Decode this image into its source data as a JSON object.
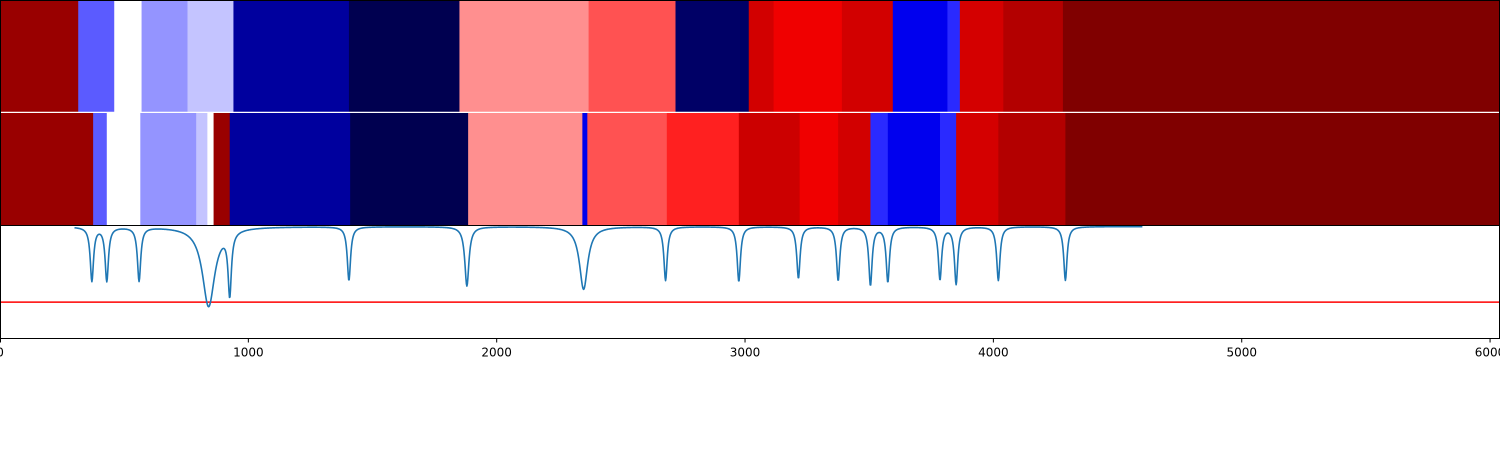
{
  "chart_data": {
    "type": "heatmap",
    "title": "",
    "xlabel": "",
    "ylabel": "",
    "xlim": [
      0,
      6040
    ],
    "x_ticks": [
      0,
      1000,
      2000,
      3000,
      4000,
      5000,
      6000
    ],
    "x_tick_labels": [
      "0",
      "1000",
      "2000",
      "3000",
      "4000",
      "5000",
      "6000"
    ],
    "grid": false,
    "legend": "none",
    "bands": [
      {
        "row": 1,
        "segments": [
          {
            "x0": 0,
            "x1": 315,
            "color": "#990000"
          },
          {
            "x0": 315,
            "x1": 460,
            "color": "#5b5bff"
          },
          {
            "x0": 460,
            "x1": 570,
            "color": "#ffffff"
          },
          {
            "x0": 570,
            "x1": 755,
            "color": "#9494ff"
          },
          {
            "x0": 755,
            "x1": 940,
            "color": "#c4c4ff"
          },
          {
            "x0": 940,
            "x1": 1405,
            "color": "#00009e"
          },
          {
            "x0": 1405,
            "x1": 1850,
            "color": "#000050"
          },
          {
            "x0": 1850,
            "x1": 2370,
            "color": "#ff8f8f"
          },
          {
            "x0": 2370,
            "x1": 2720,
            "color": "#ff5252"
          },
          {
            "x0": 2720,
            "x1": 3015,
            "color": "#000066"
          },
          {
            "x0": 3015,
            "x1": 3115,
            "color": "#d20000"
          },
          {
            "x0": 3115,
            "x1": 3390,
            "color": "#f00000"
          },
          {
            "x0": 3390,
            "x1": 3595,
            "color": "#d20000"
          },
          {
            "x0": 3595,
            "x1": 3815,
            "color": "#0000ee"
          },
          {
            "x0": 3815,
            "x1": 3865,
            "color": "#2a2aff"
          },
          {
            "x0": 3865,
            "x1": 4040,
            "color": "#d40000"
          },
          {
            "x0": 4040,
            "x1": 4280,
            "color": "#b30000"
          },
          {
            "x0": 4280,
            "x1": 6040,
            "color": "#800000"
          }
        ]
      },
      {
        "row": 2,
        "segments": [
          {
            "x0": 0,
            "x1": 375,
            "color": "#990000"
          },
          {
            "x0": 375,
            "x1": 430,
            "color": "#5b5bff"
          },
          {
            "x0": 430,
            "x1": 565,
            "color": "#ffffff"
          },
          {
            "x0": 565,
            "x1": 790,
            "color": "#9494ff"
          },
          {
            "x0": 790,
            "x1": 835,
            "color": "#c4c4ff"
          },
          {
            "x0": 835,
            "x1": 860,
            "color": "#ffffff"
          },
          {
            "x0": 860,
            "x1": 925,
            "color": "#990000"
          },
          {
            "x0": 925,
            "x1": 1410,
            "color": "#00009e"
          },
          {
            "x0": 1410,
            "x1": 1885,
            "color": "#000050"
          },
          {
            "x0": 1885,
            "x1": 2345,
            "color": "#ff8f8f"
          },
          {
            "x0": 2345,
            "x1": 2365,
            "color": "#0000ee"
          },
          {
            "x0": 2365,
            "x1": 2685,
            "color": "#ff5252"
          },
          {
            "x0": 2685,
            "x1": 2975,
            "color": "#ff2020"
          },
          {
            "x0": 2975,
            "x1": 3220,
            "color": "#cc0000"
          },
          {
            "x0": 3220,
            "x1": 3375,
            "color": "#f00000"
          },
          {
            "x0": 3375,
            "x1": 3505,
            "color": "#d20000"
          },
          {
            "x0": 3505,
            "x1": 3575,
            "color": "#2a2aff"
          },
          {
            "x0": 3575,
            "x1": 3785,
            "color": "#0000ee"
          },
          {
            "x0": 3785,
            "x1": 3850,
            "color": "#2a2aff"
          },
          {
            "x0": 3850,
            "x1": 4020,
            "color": "#d40000"
          },
          {
            "x0": 4020,
            "x1": 4290,
            "color": "#b30000"
          },
          {
            "x0": 4290,
            "x1": 6040,
            "color": "#800000"
          }
        ]
      }
    ],
    "spectrum": {
      "ylim": [
        0,
        1
      ],
      "line_color": "#1f77b4",
      "baseline": 0.995,
      "threshold": 0.32,
      "threshold_color": "#ff0000",
      "dips": [
        {
          "x": 370,
          "depth": 0.48,
          "width": 8
        },
        {
          "x": 430,
          "depth": 0.48,
          "width": 8
        },
        {
          "x": 560,
          "depth": 0.48,
          "width": 8
        },
        {
          "x": 840,
          "depth": 0.71,
          "width": 30
        },
        {
          "x": 925,
          "depth": 0.56,
          "width": 8
        },
        {
          "x": 1405,
          "depth": 0.48,
          "width": 8
        },
        {
          "x": 1880,
          "depth": 0.53,
          "width": 10
        },
        {
          "x": 2350,
          "depth": 0.56,
          "width": 20
        },
        {
          "x": 2680,
          "depth": 0.48,
          "width": 8
        },
        {
          "x": 2975,
          "depth": 0.49,
          "width": 8
        },
        {
          "x": 3215,
          "depth": 0.46,
          "width": 8
        },
        {
          "x": 3375,
          "depth": 0.48,
          "width": 8
        },
        {
          "x": 3505,
          "depth": 0.52,
          "width": 8
        },
        {
          "x": 3575,
          "depth": 0.49,
          "width": 8
        },
        {
          "x": 3785,
          "depth": 0.47,
          "width": 8
        },
        {
          "x": 3850,
          "depth": 0.51,
          "width": 8
        },
        {
          "x": 4020,
          "depth": 0.48,
          "width": 8
        },
        {
          "x": 4290,
          "depth": 0.48,
          "width": 8
        }
      ]
    }
  }
}
